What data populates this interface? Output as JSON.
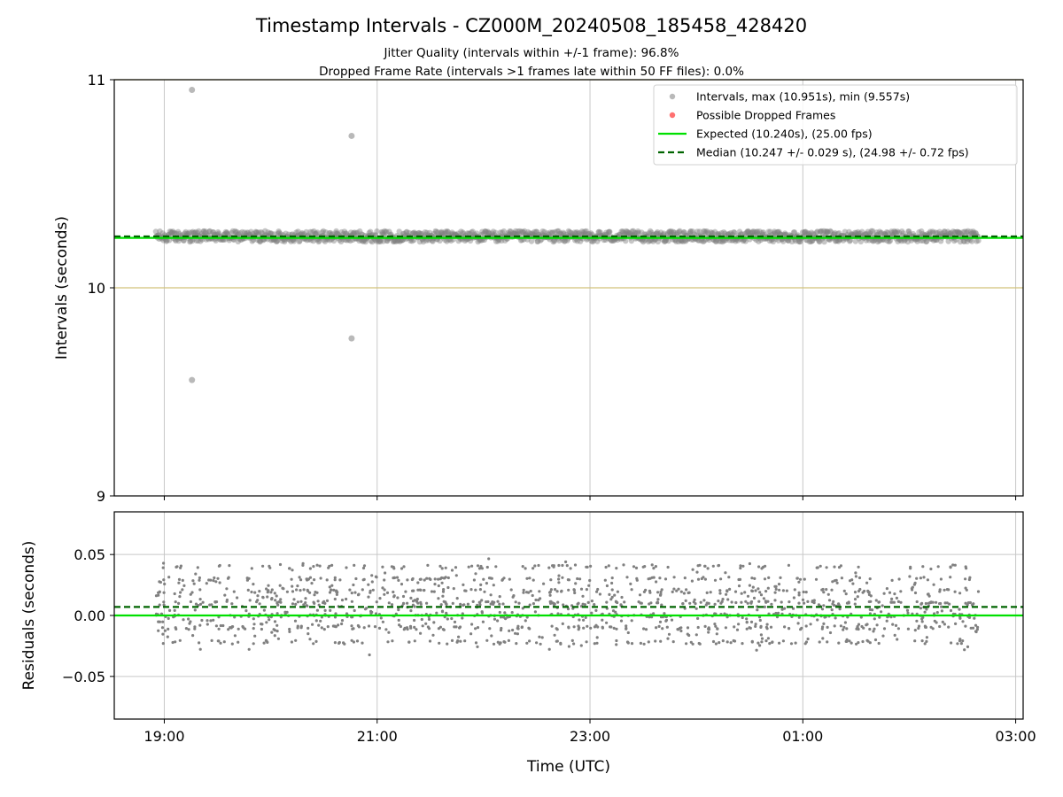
{
  "title": "Timestamp Intervals - CZ000M_20240508_185458_428420",
  "subtitle_1": "Jitter Quality (intervals within +/-1 frame): 96.8%",
  "subtitle_2": "Dropped Frame Rate (intervals >1 frames late within 50 FF files): 0.0%",
  "colors": {
    "points": "#808080",
    "dropped": "#ff4040",
    "expected": "#00e000",
    "median": "#006400",
    "frame_bounds": "#d2c27a",
    "grid": "#c8c8c8"
  },
  "chart_data": [
    {
      "type": "scatter",
      "panel": "top",
      "ylabel": "Intervals (seconds)",
      "ylim": [
        9,
        11
      ],
      "y_ticks": [
        9,
        10,
        11
      ],
      "y_tick_labels": [
        "9",
        "10",
        "11"
      ],
      "xlim_hours": [
        18.53,
        27.07
      ],
      "x_ticks_hours": [
        19,
        21,
        23,
        25,
        27
      ],
      "grid": true,
      "legend_position": "top-right",
      "legend": [
        "Intervals, max (10.951s), min (9.557s)",
        "Possible Dropped Frames",
        "Expected (10.240s), (25.00 fps)",
        "Median (10.247 +/- 0.029 s), (24.98 +/- 0.72 fps)"
      ],
      "expected": 10.24,
      "median": 10.247,
      "frame_bounds": [
        10,
        11
      ],
      "x_range_hours": [
        18.92,
        26.65
      ],
      "band_center": 10.247,
      "band_halfwidth": 0.029,
      "outliers": [
        {
          "x": 19.26,
          "y": 10.951
        },
        {
          "x": 19.26,
          "y": 9.557
        },
        {
          "x": 20.76,
          "y": 10.73
        },
        {
          "x": 20.76,
          "y": 9.757
        }
      ]
    },
    {
      "type": "scatter",
      "panel": "bottom",
      "ylabel": "Residuals (seconds)",
      "xlabel": "Time (UTC)",
      "ylim": [
        -0.085,
        0.085
      ],
      "y_ticks": [
        0.05,
        0.0,
        -0.05
      ],
      "y_tick_labels": [
        "0.05",
        "0.00",
        "−0.05"
      ],
      "x_ticks_hours": [
        19,
        21,
        23,
        25,
        27
      ],
      "x_tick_labels": [
        "19:00",
        "21:00",
        "23:00",
        "01:00",
        "03:00"
      ],
      "expected": 0.0,
      "median": 0.007,
      "residual_levels": [
        -0.022,
        -0.01,
        0.0,
        0.01,
        0.02,
        0.03,
        0.04
      ],
      "residual_range": [
        -0.038,
        0.052
      ]
    }
  ]
}
